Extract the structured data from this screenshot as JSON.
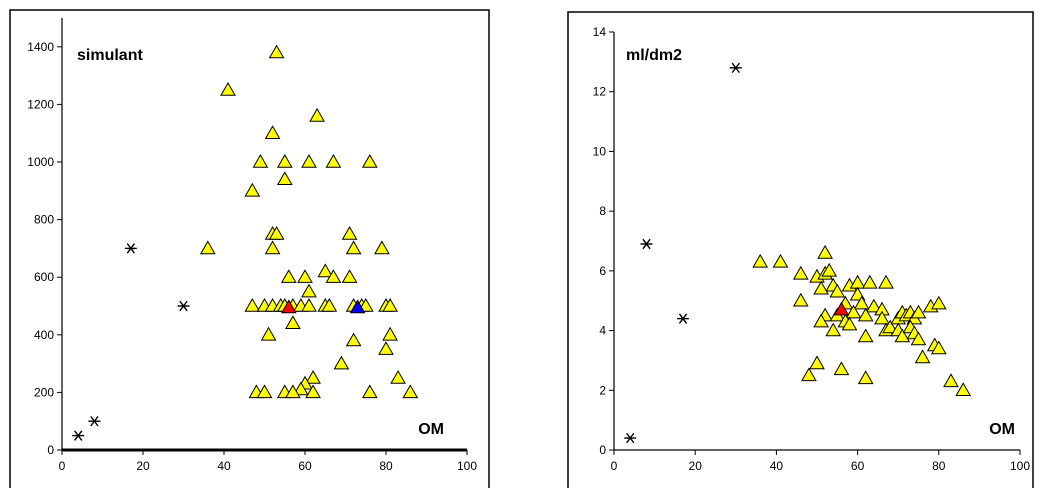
{
  "chart_data": [
    {
      "type": "scatter",
      "title": "simulant",
      "xlabel": "OM",
      "ylabel": "",
      "xlim": [
        0,
        100
      ],
      "ylim": [
        0,
        1500
      ],
      "xticks": [
        0,
        20,
        40,
        60,
        80,
        100
      ],
      "yticks": [
        0,
        200,
        400,
        600,
        800,
        1000,
        1200,
        1400
      ],
      "grid": false,
      "legend": "none",
      "series": [
        {
          "marker": "triangle",
          "color": "#ffff00",
          "points": [
            [
              53,
              1380
            ],
            [
              41,
              1250
            ],
            [
              63,
              1160
            ],
            [
              52,
              1100
            ],
            [
              49,
              1000
            ],
            [
              55,
              1000
            ],
            [
              61,
              1000
            ],
            [
              67,
              1000
            ],
            [
              76,
              1000
            ],
            [
              55,
              940
            ],
            [
              47,
              900
            ],
            [
              71,
              750
            ],
            [
              52,
              750
            ],
            [
              53,
              750
            ],
            [
              36,
              700
            ],
            [
              52,
              700
            ],
            [
              72,
              700
            ],
            [
              79,
              700
            ],
            [
              65,
              620
            ],
            [
              56,
              600
            ],
            [
              60,
              600
            ],
            [
              67,
              600
            ],
            [
              71,
              600
            ],
            [
              61,
              550
            ],
            [
              47,
              500
            ],
            [
              50,
              500
            ],
            [
              52,
              500
            ],
            [
              54,
              500
            ],
            [
              55,
              500
            ],
            [
              57,
              500
            ],
            [
              59,
              500
            ],
            [
              61,
              500
            ],
            [
              65,
              500
            ],
            [
              66,
              500
            ],
            [
              72,
              500
            ],
            [
              74,
              500
            ],
            [
              75,
              500
            ],
            [
              80,
              500
            ],
            [
              81,
              500
            ],
            [
              57,
              440
            ],
            [
              51,
              400
            ],
            [
              81,
              400
            ],
            [
              72,
              380
            ],
            [
              80,
              350
            ],
            [
              69,
              300
            ],
            [
              83,
              250
            ],
            [
              62,
              250
            ],
            [
              60,
              230
            ],
            [
              59,
              210
            ],
            [
              48,
              200
            ],
            [
              50,
              200
            ],
            [
              55,
              200
            ],
            [
              57,
              200
            ],
            [
              62,
              200
            ],
            [
              76,
              200
            ],
            [
              86,
              200
            ]
          ]
        },
        {
          "marker": "triangle",
          "color": "#ff0000",
          "points": [
            [
              56,
              495
            ]
          ]
        },
        {
          "marker": "triangle",
          "color": "#0000ff",
          "points": [
            [
              73,
              495
            ]
          ]
        },
        {
          "marker": "asterisk",
          "color": "#000000",
          "points": [
            [
              4,
              50
            ],
            [
              8,
              100
            ],
            [
              17,
              700
            ],
            [
              30,
              500
            ]
          ]
        }
      ]
    },
    {
      "type": "scatter",
      "title": "ml/dm2",
      "xlabel": "OM",
      "ylabel": "",
      "xlim": [
        0,
        100
      ],
      "ylim": [
        0,
        14
      ],
      "xticks": [
        0,
        20,
        40,
        60,
        80,
        100
      ],
      "yticks": [
        0,
        2,
        4,
        6,
        8,
        10,
        12,
        14
      ],
      "grid": false,
      "legend": "none",
      "series": [
        {
          "marker": "triangle",
          "color": "#ffff00",
          "points": [
            [
              36,
              6.3
            ],
            [
              41,
              6.3
            ],
            [
              52,
              6.6
            ],
            [
              46,
              5.9
            ],
            [
              50,
              5.8
            ],
            [
              52,
              5.9
            ],
            [
              53,
              6.0
            ],
            [
              54,
              5.5
            ],
            [
              55,
              5.3
            ],
            [
              51,
              5.4
            ],
            [
              58,
              5.5
            ],
            [
              60,
              5.6
            ],
            [
              63,
              5.6
            ],
            [
              67,
              5.6
            ],
            [
              60,
              5.2
            ],
            [
              61,
              4.9
            ],
            [
              64,
              4.8
            ],
            [
              66,
              4.7
            ],
            [
              57,
              4.9
            ],
            [
              59,
              4.6
            ],
            [
              62,
              4.5
            ],
            [
              46,
              5.0
            ],
            [
              52,
              4.5
            ],
            [
              51,
              4.3
            ],
            [
              54,
              4.0
            ],
            [
              55,
              4.5
            ],
            [
              57,
              4.3
            ],
            [
              58,
              4.2
            ],
            [
              62,
              3.8
            ],
            [
              66,
              4.4
            ],
            [
              67,
              4.0
            ],
            [
              68,
              4.1
            ],
            [
              70,
              4.4
            ],
            [
              71,
              4.6
            ],
            [
              72,
              4.5
            ],
            [
              73,
              4.6
            ],
            [
              74,
              4.4
            ],
            [
              75,
              4.6
            ],
            [
              78,
              4.8
            ],
            [
              80,
              4.9
            ],
            [
              70,
              4.0
            ],
            [
              71,
              3.8
            ],
            [
              73,
              4.1
            ],
            [
              74,
              3.9
            ],
            [
              75,
              3.7
            ],
            [
              79,
              3.5
            ],
            [
              80,
              3.4
            ],
            [
              76,
              3.1
            ],
            [
              50,
              2.9
            ],
            [
              48,
              2.5
            ],
            [
              56,
              2.7
            ],
            [
              62,
              2.4
            ],
            [
              83,
              2.3
            ],
            [
              86,
              2.0
            ]
          ]
        },
        {
          "marker": "triangle",
          "color": "#ff0000",
          "points": [
            [
              56,
              4.7
            ]
          ]
        },
        {
          "marker": "asterisk",
          "color": "#000000",
          "points": [
            [
              4,
              0.4
            ],
            [
              8,
              6.9
            ],
            [
              17,
              4.4
            ],
            [
              30,
              12.8
            ]
          ]
        }
      ]
    }
  ]
}
